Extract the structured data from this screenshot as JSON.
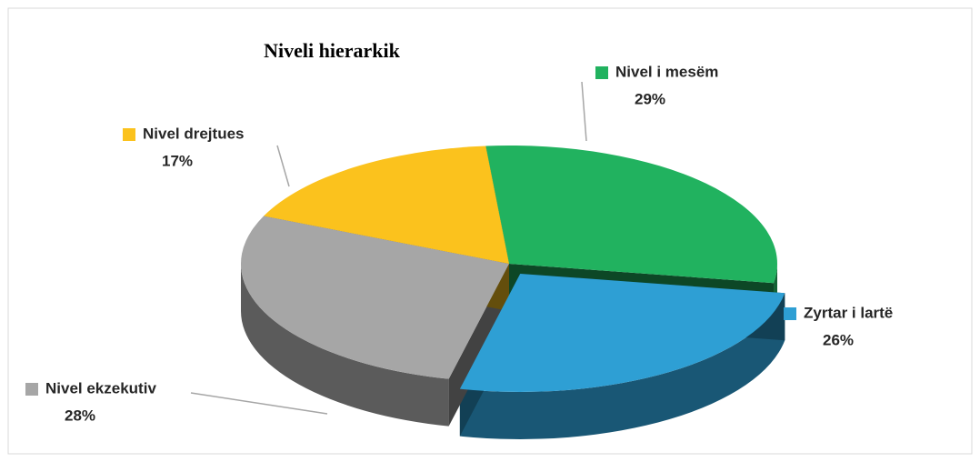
{
  "chart_data": {
    "type": "pie",
    "title": "Niveli hierarkik",
    "categories": [
      "Nivel i mesëm",
      "Zyrtar i lartë",
      "Nivel ekzekutiv",
      "Nivel drejtues"
    ],
    "values": [
      29,
      26,
      28,
      17
    ],
    "value_labels": [
      "29%",
      "26%",
      "28%",
      "17%"
    ],
    "colors": [
      "#21b25f",
      "#2e9fd4",
      "#a6a6a6",
      "#fbc21d"
    ]
  }
}
